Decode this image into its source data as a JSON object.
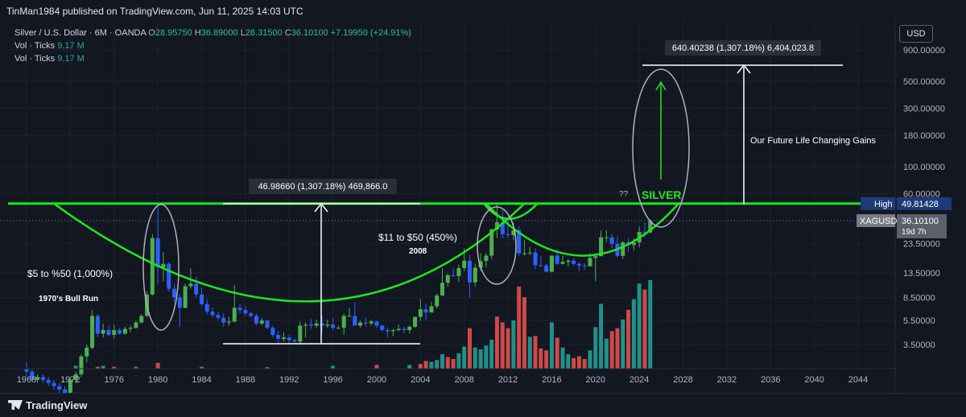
{
  "header": {
    "published": "TinMan1984 published on TradingView.com, Jun 11, 2025 14:03 UTC"
  },
  "legend": {
    "symbol": "Silver / U.S. Dollar · 6M · OANDA",
    "o_label": "O",
    "o": "28.95750",
    "h_label": "H",
    "h": "36.89000",
    "l_label": "L",
    "l": "28.31500",
    "c_label": "C",
    "c": "36.10100",
    "change": "+7.19950 (+24.91%)",
    "vol_label": "Vol · Ticks",
    "vol": "9.17 M",
    "vol_label2": "Vol · Ticks",
    "vol2": "9.17 M"
  },
  "currency_button": "USD",
  "colors": {
    "bg": "#131722",
    "up": "#26a69a",
    "down": "#2962ff",
    "green_line": "#22e322",
    "vol_up": "#26a69a",
    "vol_down": "#ef5350"
  },
  "chart_data": {
    "type": "candlestick",
    "scale": "log",
    "price_ticks": [
      "900.00000",
      "500.00000",
      "300.00000",
      "180.00000",
      "100.00000",
      "60.00000",
      "23.50000",
      "13.50000",
      "8.50000",
      "5.50000",
      "3.50000"
    ],
    "year_ticks": [
      "1968",
      "1972",
      "1976",
      "1980",
      "1984",
      "1988",
      "1992",
      "1996",
      "2000",
      "2004",
      "2008",
      "2012",
      "2016",
      "2020",
      "2024",
      "2028",
      "2032",
      "2036",
      "2040",
      "2044"
    ],
    "price_labels": {
      "high_label": "High",
      "high": "49.81428",
      "symbol_label": "XAGUSD",
      "last": "36.10100",
      "countdown": "19d 7h"
    },
    "candles": [
      [
        1968.0,
        2.2,
        2.5,
        1.9,
        2.1
      ],
      [
        1968.5,
        2.1,
        2.2,
        1.8,
        1.8
      ],
      [
        1969.0,
        1.8,
        2.0,
        1.7,
        1.9
      ],
      [
        1969.5,
        1.9,
        2.0,
        1.7,
        1.8
      ],
      [
        1970.0,
        1.8,
        1.9,
        1.6,
        1.7
      ],
      [
        1970.5,
        1.7,
        1.8,
        1.5,
        1.6
      ],
      [
        1971.0,
        1.6,
        1.7,
        1.4,
        1.5
      ],
      [
        1971.5,
        1.5,
        1.6,
        1.3,
        1.4
      ],
      [
        1972.0,
        1.4,
        1.9,
        1.3,
        1.8
      ],
      [
        1972.5,
        1.8,
        2.1,
        1.7,
        2.0
      ],
      [
        1973.0,
        2.0,
        2.9,
        1.9,
        2.8
      ],
      [
        1973.5,
        2.8,
        3.5,
        2.5,
        3.3
      ],
      [
        1974.0,
        3.3,
        6.7,
        3.2,
        6.0
      ],
      [
        1974.5,
        6.0,
        6.2,
        4.0,
        4.3
      ],
      [
        1975.0,
        4.3,
        5.2,
        4.0,
        4.6
      ],
      [
        1975.5,
        4.6,
        5.0,
        4.1,
        4.2
      ],
      [
        1976.0,
        4.2,
        5.1,
        3.9,
        4.6
      ],
      [
        1976.5,
        4.6,
        4.8,
        4.2,
        4.3
      ],
      [
        1977.0,
        4.3,
        4.9,
        4.2,
        4.7
      ],
      [
        1977.5,
        4.7,
        5.0,
        4.4,
        4.8
      ],
      [
        1978.0,
        4.8,
        5.5,
        4.7,
        5.3
      ],
      [
        1978.5,
        5.3,
        6.2,
        5.2,
        6.0
      ],
      [
        1979.0,
        6.0,
        9.5,
        5.9,
        9.0
      ],
      [
        1979.5,
        9.0,
        28.0,
        8.8,
        26.0
      ],
      [
        1980.0,
        26.0,
        48.7,
        11.0,
        15.0
      ],
      [
        1980.5,
        15.0,
        20.0,
        11.5,
        16.0
      ],
      [
        1981.0,
        16.0,
        16.5,
        9.5,
        10.0
      ],
      [
        1981.5,
        10.0,
        11.0,
        7.8,
        8.5
      ],
      [
        1982.0,
        8.5,
        9.0,
        4.9,
        7.0
      ],
      [
        1982.5,
        7.0,
        11.0,
        6.9,
        10.5
      ],
      [
        1983.0,
        10.5,
        14.7,
        10.0,
        11.0
      ],
      [
        1983.5,
        11.0,
        12.5,
        8.5,
        9.0
      ],
      [
        1984.0,
        9.0,
        10.3,
        7.2,
        7.5
      ],
      [
        1984.5,
        7.5,
        8.2,
        6.2,
        6.5
      ],
      [
        1985.0,
        6.5,
        7.0,
        5.8,
        6.1
      ],
      [
        1985.5,
        6.1,
        6.5,
        5.5,
        5.8
      ],
      [
        1986.0,
        5.8,
        6.3,
        4.9,
        5.3
      ],
      [
        1986.5,
        5.3,
        5.9,
        5.0,
        5.4
      ],
      [
        1987.0,
        5.4,
        10.8,
        5.3,
        7.0
      ],
      [
        1987.5,
        7.0,
        7.5,
        6.3,
        6.7
      ],
      [
        1988.0,
        6.7,
        7.2,
        6.0,
        6.3
      ],
      [
        1988.5,
        6.3,
        6.5,
        5.8,
        6.0
      ],
      [
        1989.0,
        6.0,
        6.3,
        5.0,
        5.2
      ],
      [
        1989.5,
        5.2,
        5.8,
        5.0,
        5.5
      ],
      [
        1990.0,
        5.5,
        5.6,
        4.7,
        4.8
      ],
      [
        1990.5,
        4.8,
        5.0,
        4.0,
        4.2
      ],
      [
        1991.0,
        4.2,
        4.5,
        3.6,
        3.9
      ],
      [
        1991.5,
        3.9,
        4.4,
        3.7,
        4.0
      ],
      [
        1992.0,
        4.0,
        4.2,
        3.6,
        3.8
      ],
      [
        1992.5,
        3.8,
        3.9,
        3.6,
        3.7
      ],
      [
        1993.0,
        3.7,
        5.4,
        3.5,
        5.0
      ],
      [
        1993.5,
        5.0,
        5.3,
        4.0,
        5.1
      ],
      [
        1994.0,
        5.1,
        5.7,
        4.7,
        5.0
      ],
      [
        1994.5,
        5.0,
        5.6,
        4.8,
        5.2
      ],
      [
        1995.0,
        5.2,
        6.0,
        4.4,
        5.0
      ],
      [
        1995.5,
        5.0,
        5.6,
        4.8,
        5.1
      ],
      [
        1996.0,
        5.1,
        5.8,
        4.6,
        4.8
      ],
      [
        1996.5,
        4.8,
        5.0,
        4.7,
        4.8
      ],
      [
        1997.0,
        4.8,
        6.3,
        4.2,
        6.0
      ],
      [
        1997.5,
        6.0,
        7.0,
        5.9,
        6.0
      ],
      [
        1998.0,
        6.0,
        7.8,
        5.0,
        5.0
      ],
      [
        1998.5,
        5.0,
        5.5,
        4.8,
        5.3
      ],
      [
        1999.0,
        5.3,
        5.8,
        4.9,
        5.2
      ],
      [
        1999.5,
        5.2,
        5.6,
        5.0,
        5.4
      ],
      [
        2000.0,
        5.4,
        5.5,
        4.8,
        5.0
      ],
      [
        2000.5,
        5.0,
        5.1,
        4.5,
        4.6
      ],
      [
        2001.0,
        4.6,
        4.8,
        4.0,
        4.5
      ],
      [
        2001.5,
        4.5,
        4.7,
        4.1,
        4.6
      ],
      [
        2002.0,
        4.6,
        5.1,
        4.5,
        4.7
      ],
      [
        2002.5,
        4.7,
        4.9,
        4.3,
        4.6
      ],
      [
        2003.0,
        4.6,
        5.0,
        4.3,
        4.9
      ],
      [
        2003.5,
        4.9,
        5.5,
        4.8,
        5.9
      ],
      [
        2004.0,
        5.9,
        8.3,
        5.5,
        6.8
      ],
      [
        2004.5,
        6.8,
        7.5,
        5.5,
        6.4
      ],
      [
        2005.0,
        6.4,
        7.8,
        6.4,
        7.2
      ],
      [
        2005.5,
        7.2,
        9.2,
        6.9,
        8.8
      ],
      [
        2006.0,
        8.8,
        14.7,
        8.8,
        11.2
      ],
      [
        2006.5,
        11.2,
        13.4,
        10.4,
        12.9
      ],
      [
        2007.0,
        12.9,
        14.9,
        12.5,
        12.7
      ],
      [
        2007.5,
        12.7,
        15.8,
        11.4,
        14.8
      ],
      [
        2008.0,
        14.8,
        21.4,
        14.0,
        17.0
      ],
      [
        2008.5,
        17.0,
        19.0,
        8.5,
        11.3
      ],
      [
        2009.0,
        11.3,
        16.0,
        10.5,
        14.9
      ],
      [
        2009.5,
        14.9,
        19.5,
        14.0,
        16.9
      ],
      [
        2010.0,
        16.9,
        19.5,
        15.0,
        18.7
      ],
      [
        2010.5,
        18.7,
        31.0,
        17.5,
        30.6
      ],
      [
        2011.0,
        30.6,
        49.8,
        26.0,
        35.0
      ],
      [
        2011.5,
        35.0,
        44.0,
        26.0,
        28.0
      ],
      [
        2012.0,
        28.0,
        37.0,
        26.0,
        27.5
      ],
      [
        2012.5,
        27.5,
        35.0,
        25.0,
        30.2
      ],
      [
        2013.0,
        30.2,
        32.5,
        18.5,
        19.5
      ],
      [
        2013.5,
        19.5,
        25.0,
        18.7,
        19.5
      ],
      [
        2014.0,
        19.5,
        22.0,
        18.9,
        19.8
      ],
      [
        2014.5,
        19.8,
        21.5,
        14.5,
        15.6
      ],
      [
        2015.0,
        15.6,
        18.5,
        15.2,
        15.5
      ],
      [
        2015.5,
        15.5,
        16.0,
        13.7,
        13.8
      ],
      [
        2016.0,
        13.8,
        18.5,
        13.6,
        18.7
      ],
      [
        2016.5,
        18.7,
        21.2,
        15.6,
        16.0
      ],
      [
        2017.0,
        16.0,
        18.6,
        15.8,
        16.6
      ],
      [
        2017.5,
        16.6,
        17.5,
        15.2,
        17.0
      ],
      [
        2018.0,
        17.0,
        17.7,
        15.5,
        16.0
      ],
      [
        2018.5,
        16.0,
        16.4,
        13.9,
        15.5
      ],
      [
        2019.0,
        15.5,
        16.2,
        14.3,
        15.3
      ],
      [
        2019.5,
        15.3,
        19.6,
        15.2,
        17.9
      ],
      [
        2020.0,
        17.9,
        18.9,
        11.6,
        18.5
      ],
      [
        2020.5,
        18.5,
        29.9,
        18.5,
        26.4
      ],
      [
        2021.0,
        26.4,
        30.1,
        24.2,
        26.4
      ],
      [
        2021.5,
        26.4,
        28.0,
        21.4,
        23.3
      ],
      [
        2022.0,
        23.3,
        26.9,
        18.0,
        18.6
      ],
      [
        2022.5,
        18.6,
        24.5,
        17.6,
        24.0
      ],
      [
        2023.0,
        24.0,
        26.1,
        19.9,
        22.8
      ],
      [
        2023.5,
        22.8,
        25.9,
        20.7,
        24.0
      ],
      [
        2024.0,
        24.0,
        32.5,
        21.9,
        29.2
      ],
      [
        2024.5,
        29.2,
        34.9,
        26.4,
        28.9
      ],
      [
        2025.0,
        28.9,
        36.9,
        28.3,
        36.1
      ]
    ],
    "volume": [
      [
        1972.5,
        0.3,
        1
      ],
      [
        1973.0,
        0.3,
        1
      ],
      [
        1974.5,
        0.2,
        0
      ],
      [
        1975,
        0.3,
        1
      ],
      [
        1976,
        0.2,
        0
      ],
      [
        1978,
        0.2,
        1
      ],
      [
        1980,
        0.6,
        0
      ],
      [
        1984,
        0.2,
        0
      ],
      [
        1990,
        0.15,
        0
      ],
      [
        1996,
        0.3,
        1
      ],
      [
        2000,
        0.4,
        0
      ],
      [
        2003,
        0.4,
        1
      ],
      [
        2004,
        0.5,
        0
      ],
      [
        2004.5,
        0.8,
        0
      ],
      [
        2005,
        0.7,
        1
      ],
      [
        2005.5,
        0.9,
        1
      ],
      [
        2006,
        1.5,
        1
      ],
      [
        2006.5,
        1.2,
        0
      ],
      [
        2007,
        1.0,
        0
      ],
      [
        2007.5,
        1.6,
        1
      ],
      [
        2008,
        2.3,
        1
      ],
      [
        2008.5,
        4.2,
        0
      ],
      [
        2009,
        2.2,
        1
      ],
      [
        2009.5,
        2.0,
        1
      ],
      [
        2010,
        2.4,
        1
      ],
      [
        2010.5,
        3.0,
        1
      ],
      [
        2011,
        5.4,
        0
      ],
      [
        2011.5,
        4.8,
        0
      ],
      [
        2012,
        4.2,
        0
      ],
      [
        2012.5,
        5.0,
        1
      ],
      [
        2013,
        8.5,
        0
      ],
      [
        2013.5,
        7.4,
        0
      ],
      [
        2014,
        3.3,
        1
      ],
      [
        2014.5,
        3.4,
        0
      ],
      [
        2015,
        2.1,
        0
      ],
      [
        2015.5,
        1.9,
        0
      ],
      [
        2016,
        4.8,
        1
      ],
      [
        2016.5,
        3.2,
        0
      ],
      [
        2017,
        2.2,
        1
      ],
      [
        2017.5,
        1.5,
        1
      ],
      [
        2018,
        1.1,
        0
      ],
      [
        2018.5,
        1.3,
        0
      ],
      [
        2019,
        1.0,
        0
      ],
      [
        2019.5,
        1.9,
        1
      ],
      [
        2020,
        4.3,
        1
      ],
      [
        2020.5,
        6.7,
        1
      ],
      [
        2021,
        3.1,
        1
      ],
      [
        2021.5,
        3.9,
        0
      ],
      [
        2022,
        4.2,
        0
      ],
      [
        2022.5,
        5.1,
        1
      ],
      [
        2023,
        6.1,
        0
      ],
      [
        2023.5,
        7.2,
        1
      ],
      [
        2024,
        8.8,
        1
      ],
      [
        2024.5,
        8.2,
        0
      ],
      [
        2025,
        9.17,
        1
      ]
    ],
    "annotations": {
      "top_measure": "640.40238 (1,307.18%) 6,404,023.8",
      "mid_measure": "46.98660 (1,307.18%) 469,866.0",
      "future_gains": "Our Future Life Changing Gains",
      "silver_label": "SILVER",
      "question": "??",
      "run_2008": "$11 to $50 (450%)",
      "year_2008": "2008",
      "run_1970": "$5 to %50 (1,000%)",
      "label_1970": "1970's Bull Run"
    }
  },
  "footer": {
    "brand": "TradingView"
  }
}
